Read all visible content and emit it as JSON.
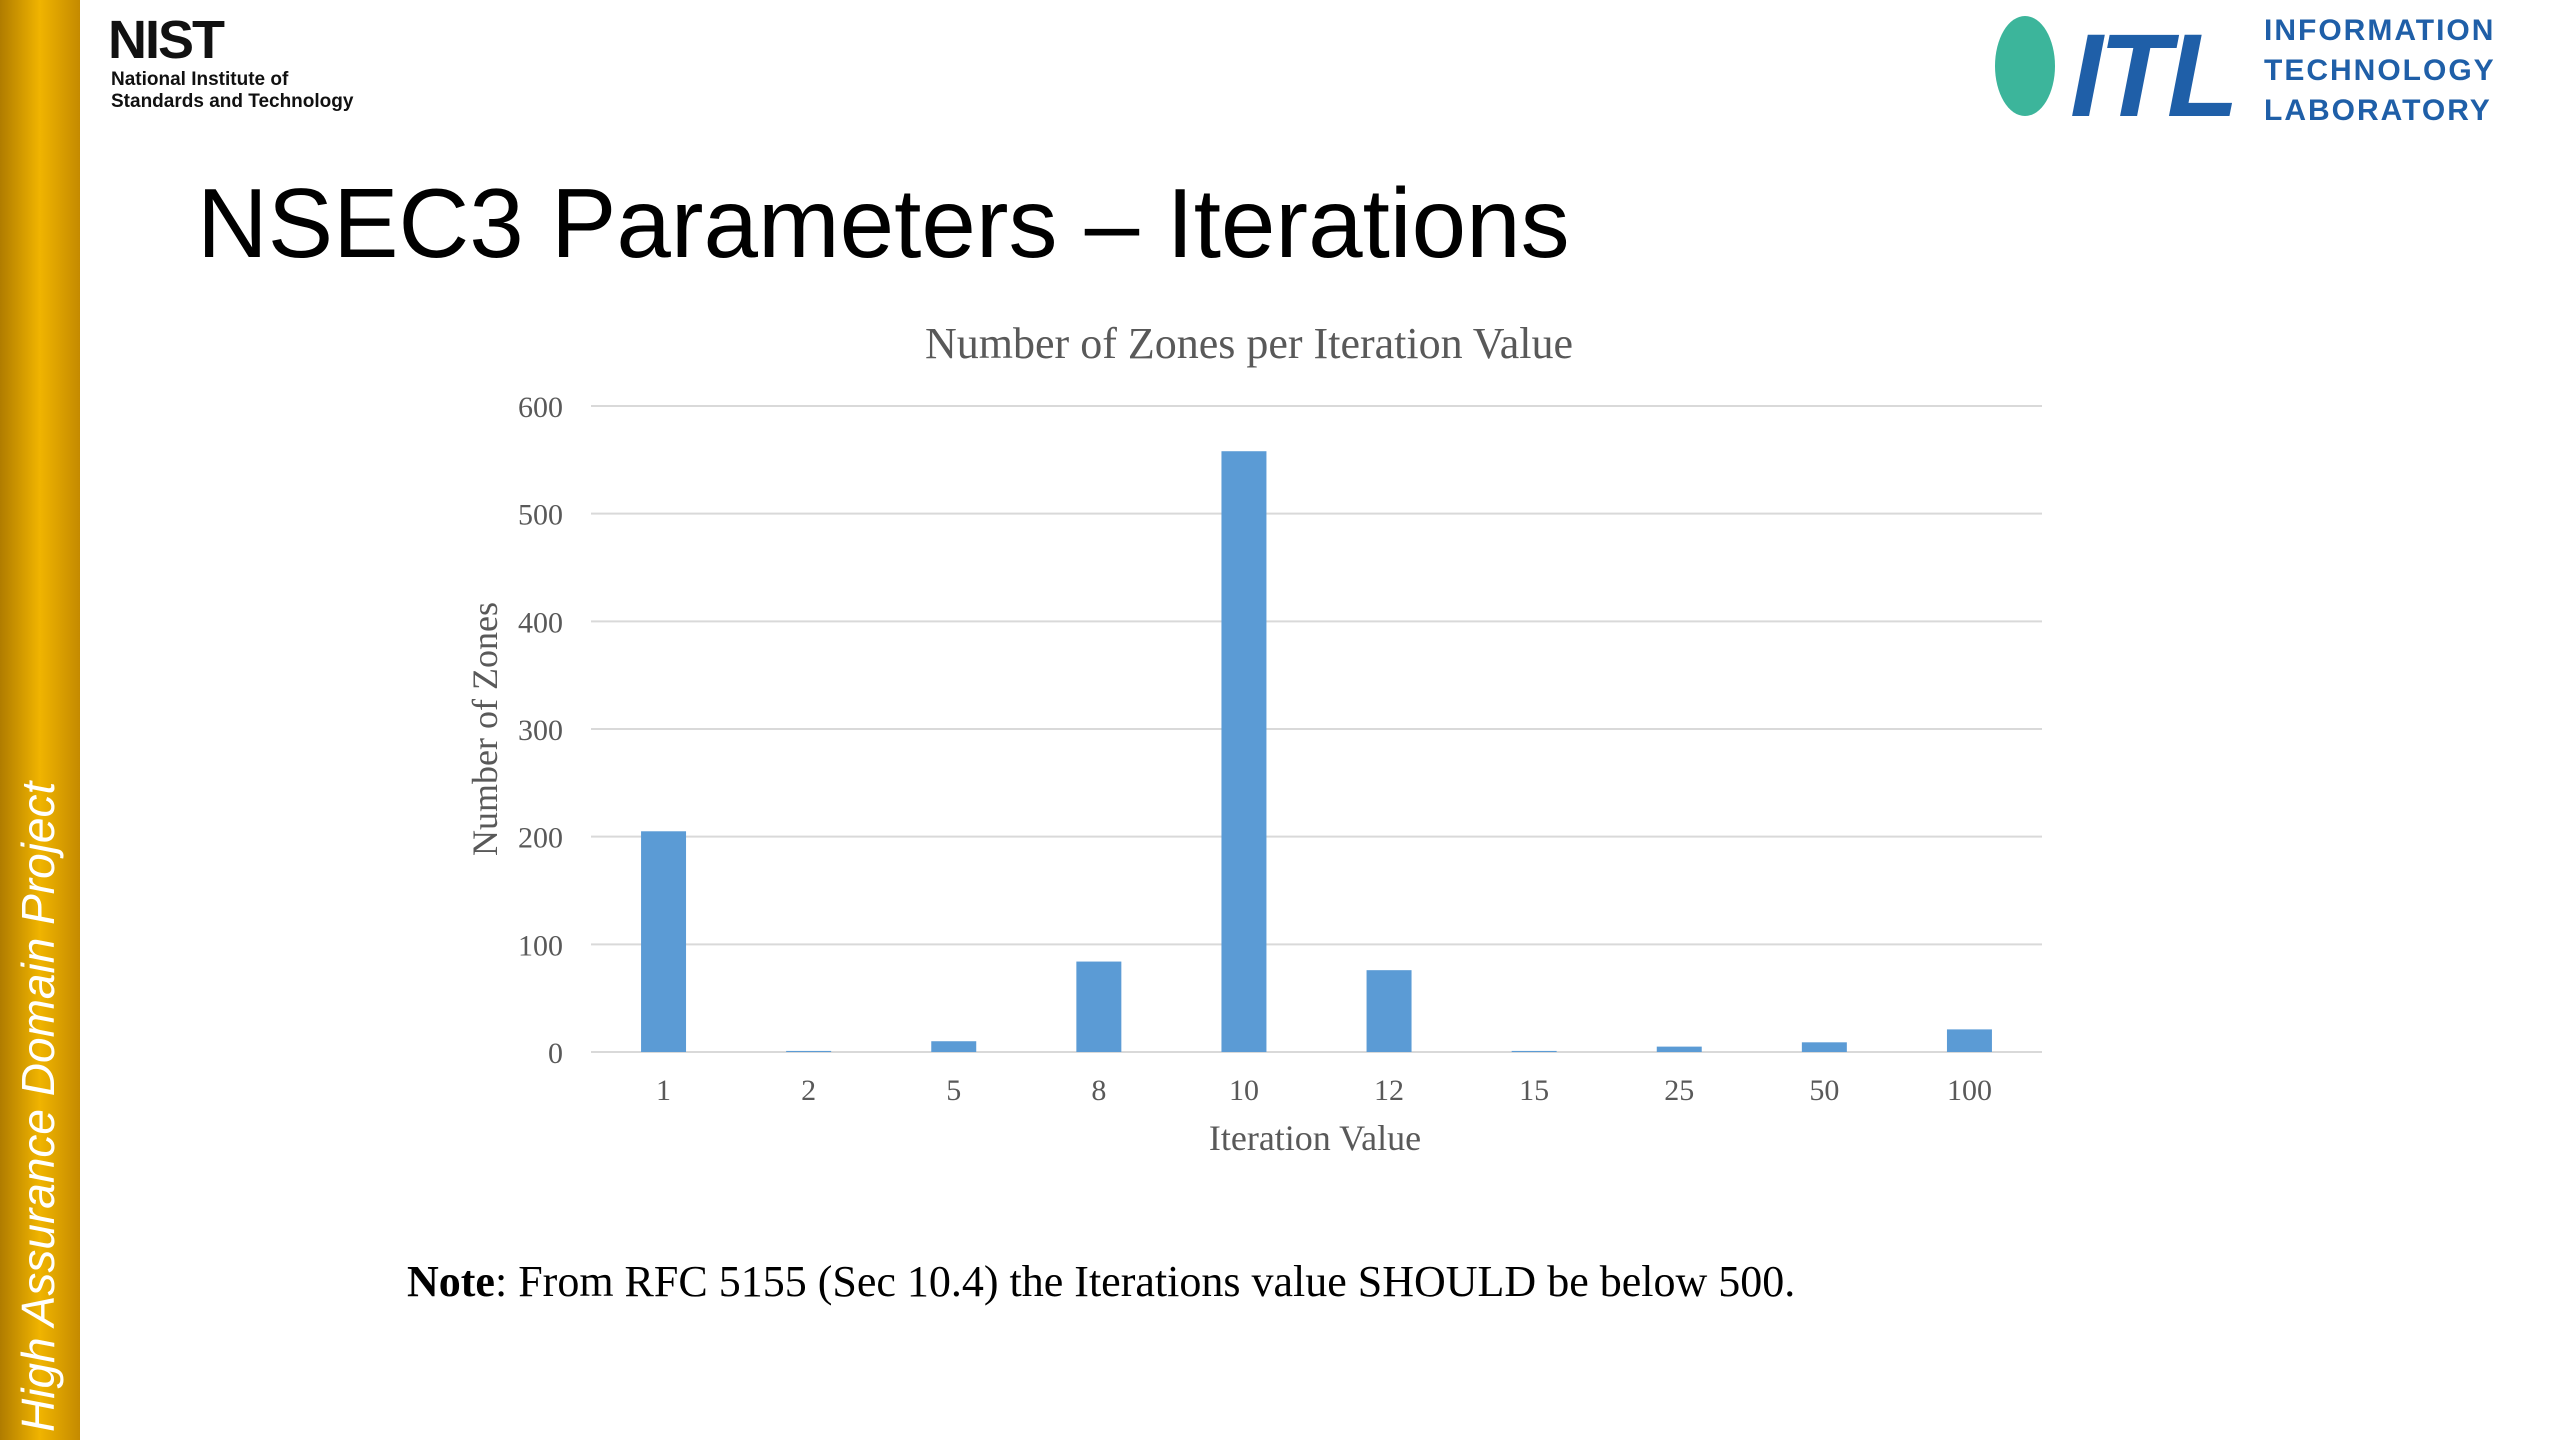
{
  "sidebar": {
    "text": "High Assurance Domain Project"
  },
  "nist_logo": {
    "name": "NIST",
    "line1": "National Institute of",
    "line2": "Standards and Technology"
  },
  "itl_logo": {
    "mark": "ITL",
    "line1": "INFORMATION",
    "line2": "TECHNOLOGY",
    "line3": "LABORATORY"
  },
  "slide_title": "NSEC3 Parameters – Iterations",
  "chart_data": {
    "type": "bar",
    "title": "Number of Zones per Iteration Value",
    "x_label": "Iteration Value",
    "y_label": "Number of Zones",
    "categories": [
      "1",
      "2",
      "5",
      "8",
      "10",
      "12",
      "15",
      "25",
      "50",
      "100"
    ],
    "values": [
      205,
      1,
      10,
      84,
      558,
      76,
      1,
      5,
      9,
      21
    ],
    "color": "#5b9bd5",
    "ylim": [
      0,
      600
    ],
    "yticks": [
      0,
      100,
      200,
      300,
      400,
      500,
      600
    ],
    "grid": true
  },
  "note": {
    "label": "Note",
    "text": ": From RFC 5155 (Sec 10.4) the Iterations value SHOULD be below 500."
  }
}
